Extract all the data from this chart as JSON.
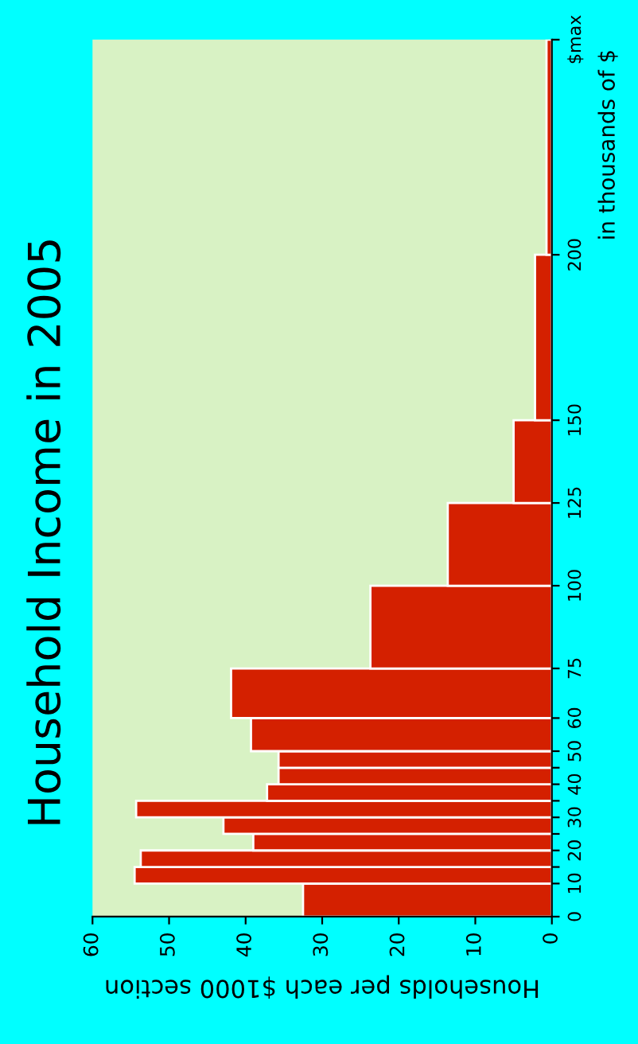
{
  "chart_data": {
    "type": "histogram",
    "orientation": "horizontal",
    "title": "Household Income in 2005",
    "xlabel": "Households per each $1000 section",
    "ylabel": "in thousands of $",
    "bins": [
      0,
      10,
      15,
      20,
      25,
      30,
      35,
      40,
      45,
      50,
      60,
      75,
      100,
      125,
      150,
      200,
      265
    ],
    "values": [
      32.5,
      54.5,
      53.7,
      39.0,
      42.9,
      54.3,
      37.2,
      35.7,
      35.7,
      39.3,
      41.9,
      23.7,
      13.6,
      5.0,
      2.2,
      0.7
    ],
    "color": "#d42000",
    "xlim": [
      60,
      0
    ],
    "xticks": [
      0,
      10,
      20,
      30,
      40,
      50,
      60
    ],
    "ylim": [
      0,
      265
    ],
    "yticks": [
      0,
      10,
      {
        "value": 15,
        "label": null
      },
      20,
      {
        "value": 25,
        "label": null
      },
      30,
      {
        "value": 35,
        "label": null
      },
      40,
      {
        "value": 45,
        "label": null
      },
      50,
      60,
      75,
      100,
      125,
      150,
      200,
      {
        "value": 265,
        "label": "$max"
      }
    ],
    "grid": false
  }
}
